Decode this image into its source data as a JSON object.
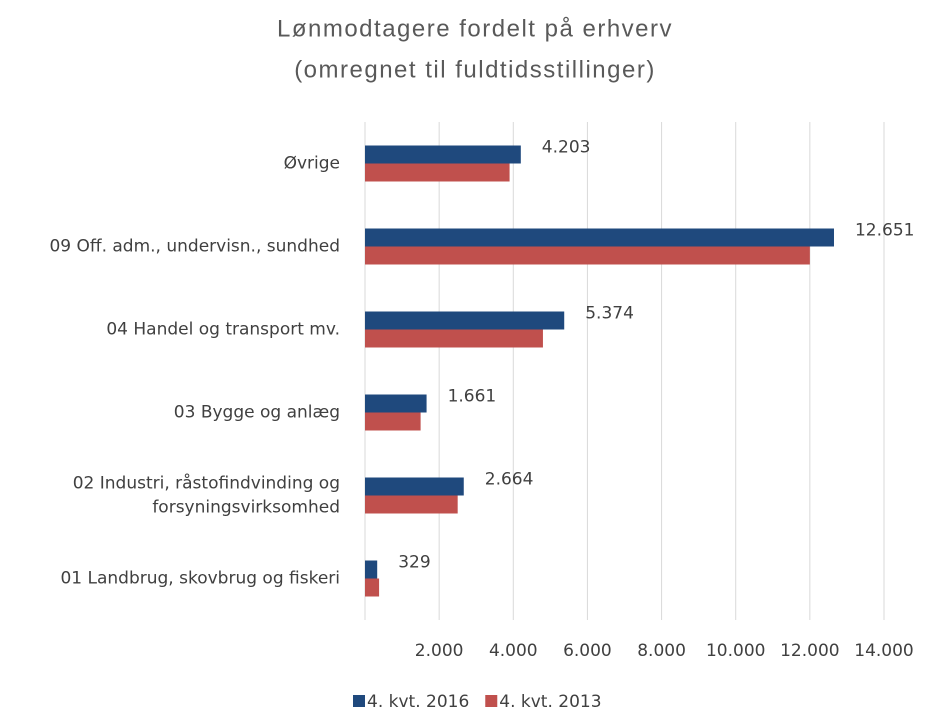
{
  "chart_data": {
    "type": "hbar",
    "title": [
      "Lønmodtagere fordelt på erhverv",
      "(omregnet til fuldtidsstillinger)"
    ],
    "categories": [
      "Øvrige",
      "09 Off. adm., undervisn., sundhed",
      "04 Handel og transport mv.",
      "03 Bygge og anlæg",
      "02 Industri, råstofindvinding og\nforsyningsvirksomhed",
      "01 Landbrug, skovbrug og fiskeri"
    ],
    "series": [
      {
        "name": "4. kvt. 2016",
        "color": "#1f497d",
        "values": [
          4203,
          12651,
          5374,
          1661,
          2664,
          329
        ],
        "value_labels": [
          "4.203",
          "12.651",
          "5.374",
          "1.661",
          "2.664",
          "329"
        ]
      },
      {
        "name": "4. kvt. 2013",
        "color": "#c0504d",
        "values": [
          3900,
          12000,
          4800,
          1500,
          2500,
          380
        ]
      }
    ],
    "xlim": [
      0,
      14000
    ],
    "xticks": [
      {
        "value": 2000,
        "label": "2.000"
      },
      {
        "value": 4000,
        "label": "4.000"
      },
      {
        "value": 6000,
        "label": "6.000"
      },
      {
        "value": 8000,
        "label": "8.000"
      },
      {
        "value": 10000,
        "label": "10.000"
      },
      {
        "value": 12000,
        "label": "12.000"
      },
      {
        "value": 14000,
        "label": "14.000"
      }
    ],
    "grid": true,
    "legend": "bottom"
  }
}
